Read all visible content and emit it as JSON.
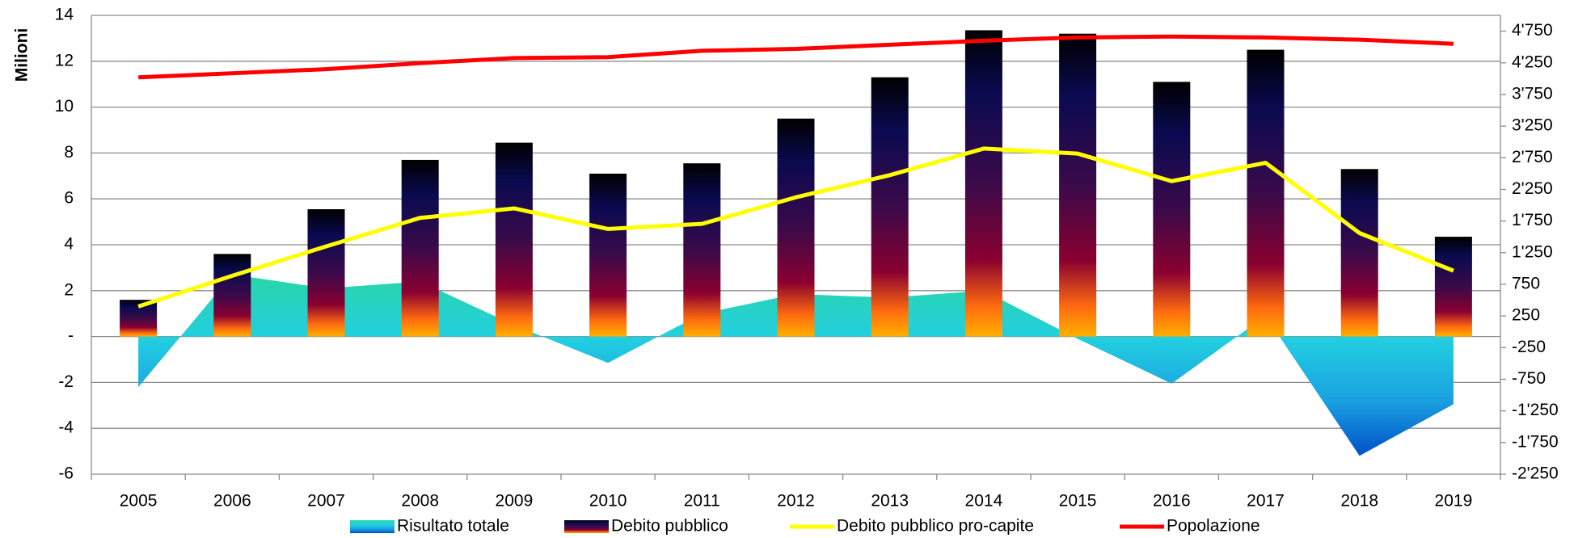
{
  "chart_data": {
    "type": "combo",
    "y_label": "Milioni",
    "categories": [
      "2005",
      "2006",
      "2007",
      "2008",
      "2009",
      "2010",
      "2011",
      "2012",
      "2013",
      "2014",
      "2015",
      "2016",
      "2017",
      "2018",
      "2019"
    ],
    "ylim": [
      -6,
      14
    ],
    "yticks": [
      -6,
      -4,
      -2,
      {
        "value": 0,
        "label": "-"
      },
      2,
      4,
      6,
      8,
      10,
      12,
      14
    ],
    "y2lim": [
      -2250,
      5000
    ],
    "y2ticks": [
      {
        "value": -2250,
        "label": "-2'250"
      },
      {
        "value": -1750,
        "label": "-1'750"
      },
      {
        "value": -1250,
        "label": "-1'250"
      },
      -750,
      -250,
      250,
      750,
      {
        "value": 1250,
        "label": "1'250"
      },
      {
        "value": 1750,
        "label": "1'750"
      },
      {
        "value": 2250,
        "label": "2'250"
      },
      {
        "value": 2750,
        "label": "2'750"
      },
      {
        "value": 3250,
        "label": "3'250"
      },
      {
        "value": 3750,
        "label": "3'750"
      },
      {
        "value": 4250,
        "label": "4'250"
      },
      {
        "value": 4750,
        "label": "4'750"
      }
    ],
    "grid": true,
    "legend": "bottom",
    "series": [
      {
        "name": "Risultato totale",
        "type": "area",
        "values": [
          -2.2,
          2.7,
          2.1,
          2.4,
          0.5,
          -1.15,
          1.0,
          1.85,
          1.7,
          2.0,
          -0.1,
          -2.05,
          0.9,
          -5.2,
          -2.95
        ]
      },
      {
        "name": "Debito pubblico",
        "type": "bar",
        "values": [
          1.6,
          3.6,
          5.55,
          7.7,
          8.45,
          7.1,
          7.55,
          9.5,
          11.3,
          13.35,
          13.2,
          11.1,
          12.5,
          7.3,
          4.35
        ]
      },
      {
        "name": "Debito pubblico pro-capite",
        "type": "line",
        "axis": "y2",
        "color": "#ffff00",
        "values": [
          400,
          885,
          1350,
          1800,
          1950,
          1625,
          1705,
          2125,
          2475,
          2895,
          2815,
          2380,
          2670,
          1560,
          965
        ]
      },
      {
        "name": "Popolazione",
        "type": "line",
        "axis": "y2",
        "color": "#ff0000",
        "values": [
          4020,
          4085,
          4150,
          4245,
          4325,
          4340,
          4440,
          4470,
          4535,
          4600,
          4650,
          4665,
          4650,
          4615,
          4550
        ]
      }
    ]
  }
}
